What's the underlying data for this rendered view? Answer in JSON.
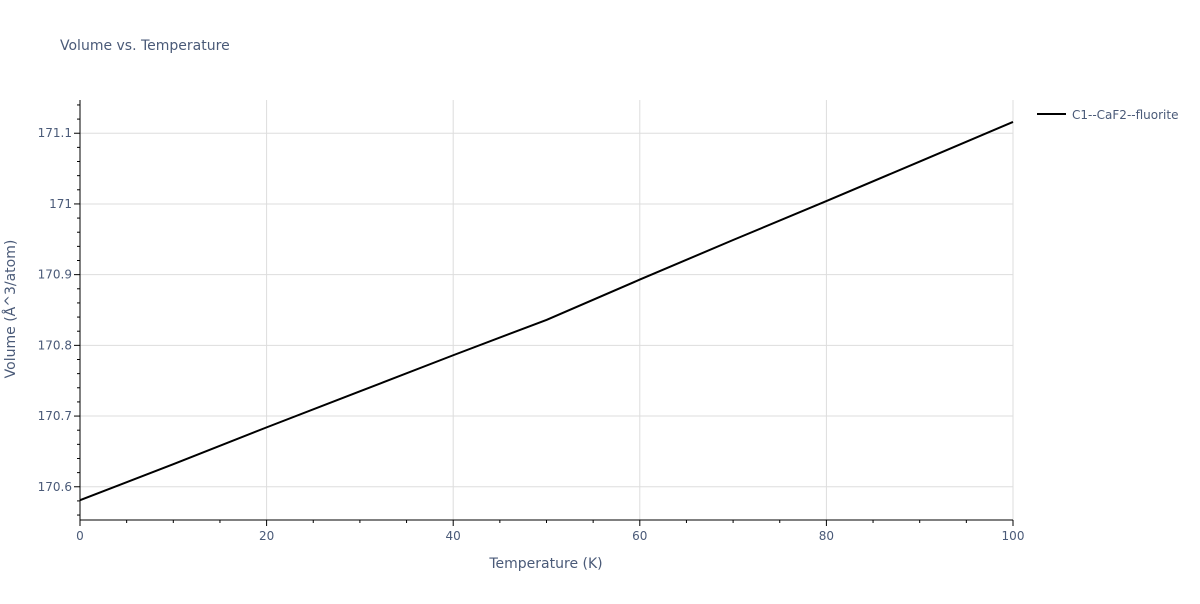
{
  "chart_data": {
    "type": "line",
    "title": "Volume vs. Temperature",
    "xlabel": "Temperature (K)",
    "ylabel": "Volume (Å^3/atom)",
    "xlim": [
      0,
      100
    ],
    "ylim": [
      170.553,
      171.147
    ],
    "x_ticks": [
      0,
      20,
      40,
      60,
      80,
      100
    ],
    "y_ticks": [
      170.6,
      170.7,
      170.8,
      170.9,
      171,
      171.1
    ],
    "x_tick_labels": [
      "0",
      "20",
      "40",
      "60",
      "80",
      "100"
    ],
    "y_tick_labels": [
      "170.6",
      "170.7",
      "170.8",
      "170.9",
      "171",
      "171.1"
    ],
    "grid": true,
    "legend_position": "top-right-outside",
    "series": [
      {
        "name": "C1--CaF2--fluorite",
        "color": "#000000",
        "x": [
          0,
          10,
          20,
          30,
          40,
          50,
          60,
          70,
          80,
          90,
          100
        ],
        "y": [
          170.581,
          170.632,
          170.684,
          170.735,
          170.786,
          170.836,
          170.893,
          170.949,
          171.004,
          171.06,
          171.116
        ]
      }
    ]
  }
}
